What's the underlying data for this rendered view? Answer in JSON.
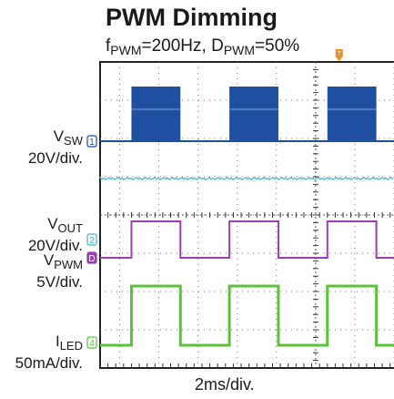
{
  "title": "PWM Dimming",
  "subtitle": {
    "f_sym": "f",
    "f_sub": "PWM",
    "f_val": "=200Hz, ",
    "d_sym": "D",
    "d_sub": "PWM",
    "d_val": "=50%"
  },
  "channels": [
    {
      "name_main": "V",
      "name_sub": "SW",
      "scale": "20V/div.",
      "marker": "1",
      "color": "#1f4fa0"
    },
    {
      "name_main": "V",
      "name_sub": "OUT",
      "scale": "20V/div.",
      "marker": "2",
      "color": "#40b8c8"
    },
    {
      "name_main": "V",
      "name_sub": "PWM",
      "scale": "5V/div.",
      "marker": "D",
      "color": "#9b3fb5"
    },
    {
      "name_main": "I",
      "name_sub": "LED",
      "scale": "50mA/div.",
      "marker": "4",
      "color": "#5cc23a"
    }
  ],
  "trigger_marker": "T",
  "xlabel": "2ms/div.",
  "chart_data": {
    "type": "line",
    "x_unit": "ms",
    "x_range": [
      -11,
      4
    ],
    "period_ms": 5,
    "duty_cycle": 0.5,
    "series": [
      {
        "name": "VSW",
        "on_windows_ms": [
          [
            -9.4,
            -6.9
          ],
          [
            -4.4,
            -1.9
          ],
          [
            0.6,
            3.1
          ]
        ]
      },
      {
        "name": "VOUT",
        "level": "constant"
      },
      {
        "name": "VPWM",
        "rising_edges_ms": [
          -9.4,
          -4.4,
          0.6
        ],
        "falling_edges_ms": [
          -6.9,
          -1.9,
          3.1
        ]
      },
      {
        "name": "ILED",
        "rising_edges_ms": [
          -9.4,
          -4.4,
          0.6
        ],
        "falling_edges_ms": [
          -6.9,
          -1.9,
          3.1
        ]
      }
    ]
  }
}
